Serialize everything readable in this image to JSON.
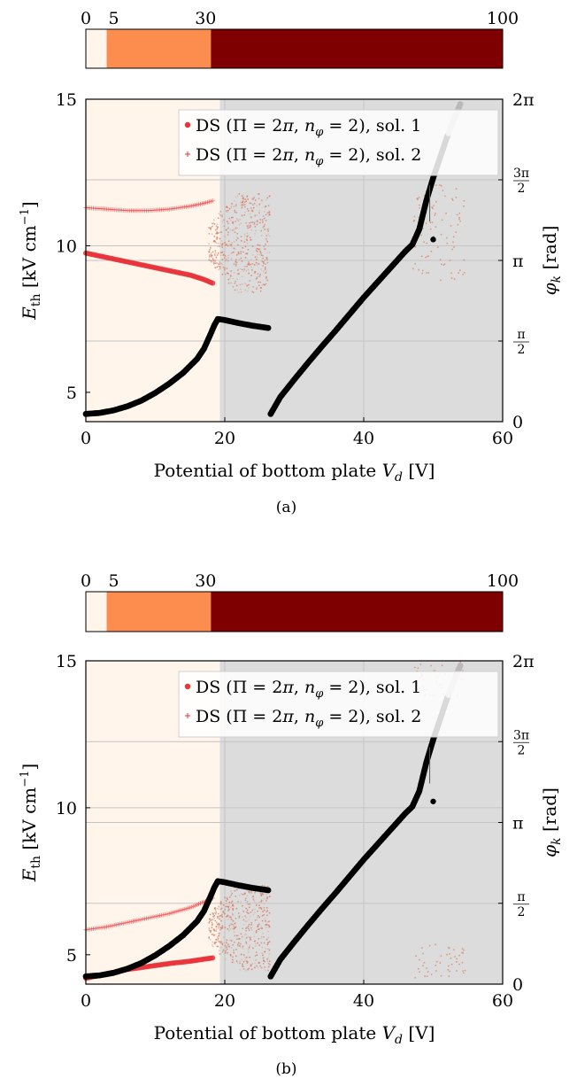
{
  "figure": {
    "captions": [
      "(a)",
      "(b)"
    ]
  },
  "chart_data": [
    {
      "type": "scatter",
      "caption": "(a)",
      "colorbar": {
        "ticks": [
          "0",
          "5",
          "30",
          "100"
        ],
        "segments": [
          {
            "from": 0,
            "to": 5,
            "color": "#fff5eb"
          },
          {
            "from": 5,
            "to": 30,
            "color": "#fd8d4f"
          },
          {
            "from": 30,
            "to": 100,
            "color": "#7f0000"
          }
        ],
        "range": [
          0,
          100
        ]
      },
      "xlabel": "Potential of bottom plate V_d [V]",
      "ylabel": "E_th [kV cm^-1]",
      "y2label": "φ_k [rad]",
      "xlim": [
        0,
        60
      ],
      "ylim": [
        4,
        15
      ],
      "y2lim": [
        0,
        6.2832
      ],
      "xticks": [
        "0",
        "20",
        "40",
        "60"
      ],
      "yticks": [
        "5",
        "10",
        "15"
      ],
      "y2ticks": [
        "0",
        "π/2",
        "π",
        "3π/2",
        "2π"
      ],
      "grid": true,
      "background_bands": [
        {
          "x": [
            0,
            19.3
          ],
          "color": "#fff5eb"
        },
        {
          "x": [
            19.3,
            60
          ],
          "color": "#dcdcdc"
        }
      ],
      "legend": {
        "position": "top-right",
        "entries": [
          {
            "label": "DS (Π = 2π, n_φ = 2), sol. 1",
            "marker": "dot",
            "color": "#e8343a"
          },
          {
            "label": "DS (Π = 2π, n_φ = 2), sol. 2",
            "marker": "plus",
            "color": "#e8343a"
          }
        ]
      },
      "series": [
        {
          "name": "DS (Π = 2π, n_φ = 2), sol. 1",
          "axis": "left",
          "x": [
            0,
            3,
            6,
            9,
            12,
            15,
            17,
            18.5
          ],
          "y": [
            9.75,
            9.6,
            9.45,
            9.3,
            9.15,
            9.0,
            8.85,
            8.7
          ]
        },
        {
          "name": "DS (Π = 2π, n_φ = 2), sol. 2",
          "axis": "left",
          "x": [
            0,
            3,
            6,
            9,
            12,
            15,
            17,
            18.5
          ],
          "y": [
            11.3,
            11.25,
            11.2,
            11.2,
            11.25,
            11.35,
            11.45,
            11.55
          ]
        },
        {
          "name": "φ_k",
          "axis": "right",
          "x": [
            0,
            2,
            4,
            6,
            8,
            10,
            12,
            14,
            16,
            17,
            18,
            18.5,
            19,
            20,
            22,
            24,
            26.5,
            26.6,
            28,
            30,
            32,
            34,
            36,
            38,
            40,
            42,
            44,
            46,
            47,
            48,
            49,
            50,
            51,
            52,
            53,
            54
          ],
          "y": [
            0.15,
            0.17,
            0.22,
            0.3,
            0.41,
            0.56,
            0.74,
            0.95,
            1.22,
            1.42,
            1.72,
            1.88,
            2.0,
            1.98,
            1.92,
            1.87,
            1.82,
            0.15,
            0.48,
            0.82,
            1.15,
            1.47,
            1.78,
            2.1,
            2.42,
            2.72,
            3.02,
            3.32,
            3.45,
            3.75,
            4.3,
            4.75,
            5.15,
            5.55,
            5.9,
            6.22
          ]
        }
      ]
    },
    {
      "type": "scatter",
      "caption": "(b)",
      "colorbar": {
        "ticks": [
          "0",
          "5",
          "30",
          "100"
        ],
        "segments": [
          {
            "from": 0,
            "to": 5,
            "color": "#fff5eb"
          },
          {
            "from": 5,
            "to": 30,
            "color": "#fd8d4f"
          },
          {
            "from": 30,
            "to": 100,
            "color": "#7f0000"
          }
        ],
        "range": [
          0,
          100
        ]
      },
      "xlabel": "Potential of bottom plate V_d [V]",
      "ylabel": "E_th [kV cm^-1]",
      "y2label": "φ_k [rad]",
      "xlim": [
        0,
        60
      ],
      "ylim": [
        4,
        15
      ],
      "y2lim": [
        0,
        6.2832
      ],
      "xticks": [
        "0",
        "20",
        "40",
        "60"
      ],
      "yticks": [
        "5",
        "10",
        "15"
      ],
      "y2ticks": [
        "0",
        "π/2",
        "π",
        "3π/2",
        "2π"
      ],
      "grid": true,
      "background_bands": [
        {
          "x": [
            0,
            19.3
          ],
          "color": "#fff5eb"
        },
        {
          "x": [
            19.3,
            60
          ],
          "color": "#dcdcdc"
        }
      ],
      "legend": {
        "position": "top-right",
        "entries": [
          {
            "label": "DS (Π = 2π, n_φ = 2), sol. 1",
            "marker": "dot",
            "color": "#e8343a"
          },
          {
            "label": "DS (Π = 2π, n_φ = 2), sol. 2",
            "marker": "plus",
            "color": "#e8343a"
          }
        ]
      },
      "series": [
        {
          "name": "DS (Π = 2π, n_φ = 2), sol. 1",
          "axis": "left",
          "x": [
            0,
            3,
            6,
            9,
            12,
            15,
            17,
            18.5
          ],
          "y": [
            4.2,
            4.35,
            4.5,
            4.6,
            4.7,
            4.78,
            4.85,
            4.9
          ]
        },
        {
          "name": "DS (Π = 2π, n_φ = 2), sol. 2",
          "axis": "left",
          "x": [
            0,
            3,
            6,
            9,
            12,
            15,
            17,
            18.5
          ],
          "y": [
            5.85,
            5.95,
            6.1,
            6.25,
            6.4,
            6.6,
            6.8,
            6.95
          ]
        },
        {
          "name": "φ_k",
          "axis": "right",
          "x": [
            0,
            2,
            4,
            6,
            8,
            10,
            12,
            14,
            16,
            17,
            18,
            18.5,
            19,
            20,
            22,
            24,
            26.5,
            26.6,
            28,
            30,
            32,
            34,
            36,
            38,
            40,
            42,
            44,
            46,
            47,
            48,
            49,
            50,
            51,
            52,
            53,
            54
          ],
          "y": [
            0.15,
            0.17,
            0.22,
            0.3,
            0.41,
            0.56,
            0.74,
            0.95,
            1.22,
            1.42,
            1.72,
            1.88,
            2.0,
            1.98,
            1.92,
            1.87,
            1.82,
            0.15,
            0.48,
            0.82,
            1.15,
            1.47,
            1.78,
            2.1,
            2.42,
            2.72,
            3.02,
            3.32,
            3.45,
            3.75,
            4.3,
            4.75,
            5.15,
            5.55,
            5.9,
            6.22
          ]
        }
      ]
    }
  ]
}
